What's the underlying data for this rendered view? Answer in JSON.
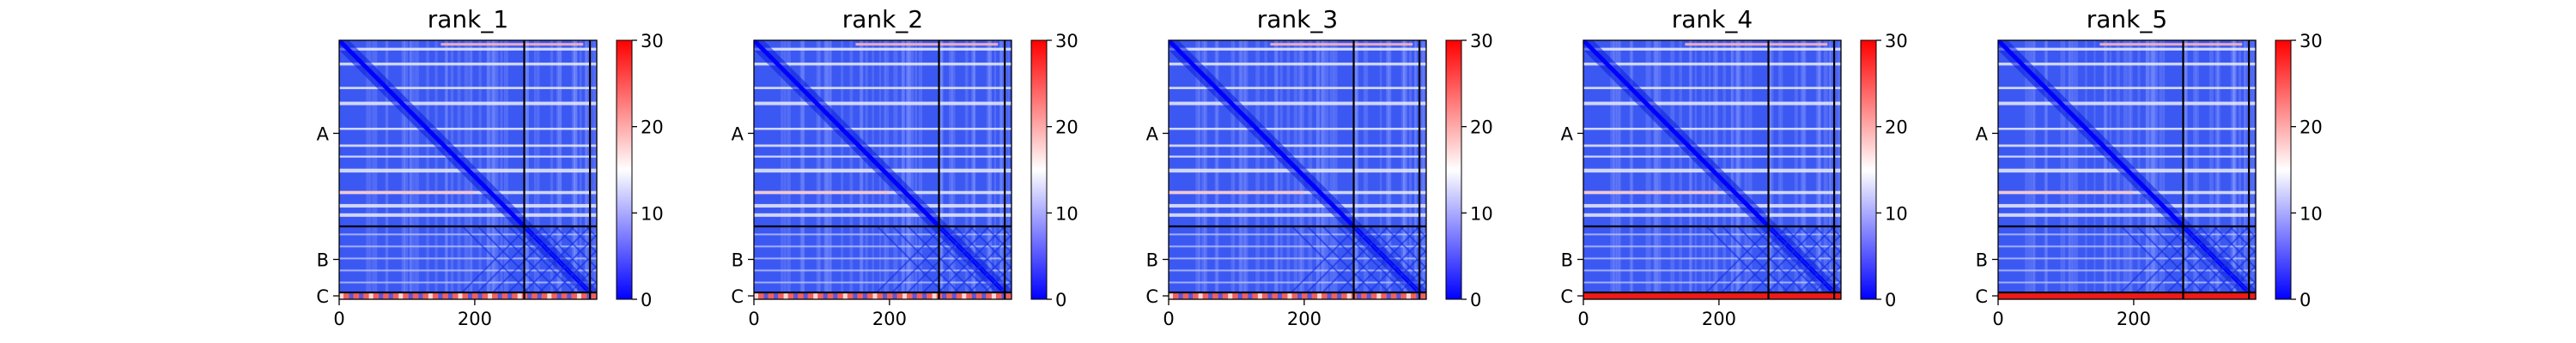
{
  "chart_data": [
    {
      "type": "heatmap",
      "title": "rank_1",
      "x_ticks": [
        "0",
        "200"
      ],
      "x_tick_values": [
        0,
        200
      ],
      "xlim": [
        0,
        380
      ],
      "chains": [
        {
          "label": "A",
          "start": 0,
          "end": 273
        },
        {
          "label": "B",
          "start": 273,
          "end": 370
        },
        {
          "label": "C",
          "start": 370,
          "end": 380
        }
      ],
      "colorbar": {
        "min": 0,
        "max": 30,
        "ticks": [
          "0",
          "10",
          "20",
          "30"
        ],
        "tick_values": [
          0,
          10,
          20,
          30
        ]
      },
      "colormap": [
        "#0000ff",
        "#ffffff",
        "#ff0000"
      ],
      "c_row_level": "mixed"
    },
    {
      "type": "heatmap",
      "title": "rank_2",
      "x_ticks": [
        "0",
        "200"
      ],
      "x_tick_values": [
        0,
        200
      ],
      "xlim": [
        0,
        380
      ],
      "chains": [
        {
          "label": "A",
          "start": 0,
          "end": 273
        },
        {
          "label": "B",
          "start": 273,
          "end": 370
        },
        {
          "label": "C",
          "start": 370,
          "end": 380
        }
      ],
      "colorbar": {
        "min": 0,
        "max": 30,
        "ticks": [
          "0",
          "10",
          "20",
          "30"
        ],
        "tick_values": [
          0,
          10,
          20,
          30
        ]
      },
      "colormap": [
        "#0000ff",
        "#ffffff",
        "#ff0000"
      ],
      "c_row_level": "mixed"
    },
    {
      "type": "heatmap",
      "title": "rank_3",
      "x_ticks": [
        "0",
        "200"
      ],
      "x_tick_values": [
        0,
        200
      ],
      "xlim": [
        0,
        380
      ],
      "chains": [
        {
          "label": "A",
          "start": 0,
          "end": 273
        },
        {
          "label": "B",
          "start": 273,
          "end": 370
        },
        {
          "label": "C",
          "start": 370,
          "end": 380
        }
      ],
      "colorbar": {
        "min": 0,
        "max": 30,
        "ticks": [
          "0",
          "10",
          "20",
          "30"
        ],
        "tick_values": [
          0,
          10,
          20,
          30
        ]
      },
      "colormap": [
        "#0000ff",
        "#ffffff",
        "#ff0000"
      ],
      "c_row_level": "mixed"
    },
    {
      "type": "heatmap",
      "title": "rank_4",
      "x_ticks": [
        "0",
        "200"
      ],
      "x_tick_values": [
        0,
        200
      ],
      "xlim": [
        0,
        380
      ],
      "chains": [
        {
          "label": "A",
          "start": 0,
          "end": 273
        },
        {
          "label": "B",
          "start": 273,
          "end": 370
        },
        {
          "label": "C",
          "start": 370,
          "end": 380
        }
      ],
      "colorbar": {
        "min": 0,
        "max": 30,
        "ticks": [
          "0",
          "10",
          "20",
          "30"
        ],
        "tick_values": [
          0,
          10,
          20,
          30
        ]
      },
      "colormap": [
        "#0000ff",
        "#ffffff",
        "#ff0000"
      ],
      "c_row_level": "high"
    },
    {
      "type": "heatmap",
      "title": "rank_5",
      "x_ticks": [
        "0",
        "200"
      ],
      "x_tick_values": [
        0,
        200
      ],
      "xlim": [
        0,
        380
      ],
      "chains": [
        {
          "label": "A",
          "start": 0,
          "end": 273
        },
        {
          "label": "B",
          "start": 273,
          "end": 370
        },
        {
          "label": "C",
          "start": 370,
          "end": 380
        }
      ],
      "colorbar": {
        "min": 0,
        "max": 30,
        "ticks": [
          "0",
          "10",
          "20",
          "30"
        ],
        "tick_values": [
          0,
          10,
          20,
          30
        ]
      },
      "colormap": [
        "#0000ff",
        "#ffffff",
        "#ff0000"
      ],
      "c_row_level": "high"
    }
  ]
}
